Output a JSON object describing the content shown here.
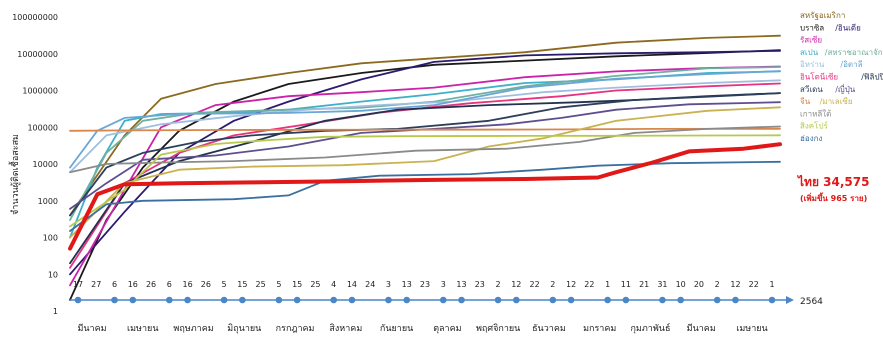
{
  "chart_data": {
    "type": "line",
    "title": "",
    "ylabel": "จำนวนผู้ติดเชื้อสะสม",
    "xlabel": "",
    "yscale": "log",
    "ylim": [
      1,
      100000000
    ],
    "yticks": [
      "1",
      "10",
      "100",
      "1000",
      "10000",
      "100000",
      "1000000",
      "10000000",
      "100000000"
    ],
    "year_label": "2564",
    "day_ticks": [
      "17",
      "27",
      "6",
      "16",
      "26",
      "6",
      "16",
      "26",
      "5",
      "15",
      "25",
      "5",
      "15",
      "25",
      "4",
      "14",
      "24",
      "3",
      "13",
      "23",
      "3",
      "13",
      "23",
      "2",
      "12",
      "22",
      "2",
      "12",
      "22",
      "1",
      "11",
      "21",
      "31",
      "10",
      "20",
      "2",
      "12",
      "22",
      "1"
    ],
    "months": [
      "มีนาคม",
      "เมษายน",
      "พฤษภาคม",
      "มิถุนายน",
      "กรกฎาคม",
      "สิงหาคม",
      "กันยายน",
      "ตุลาคม",
      "พฤศจิกายน",
      "ธันวาคม",
      "มกราคม",
      "กุมภาพันธ์",
      "มีนาคม",
      "เมษายน"
    ],
    "x_start": 0,
    "x_end": 39,
    "grid": false,
    "legend_position": "right",
    "thai_label": "ไทย 34,575",
    "thai_sub": "(เพิ่มขึ้น 965 ราย)",
    "series": [
      {
        "name": "สหรัฐอเมริกา",
        "color": "#8b6a1f",
        "points": [
          [
            0,
            400
          ],
          [
            1.5,
            5000
          ],
          [
            3,
            60000
          ],
          [
            5,
            600000
          ],
          [
            8,
            1500000
          ],
          [
            12,
            3000000
          ],
          [
            16,
            5500000
          ],
          [
            20,
            7500000
          ],
          [
            25,
            11000000
          ],
          [
            30,
            20000000
          ],
          [
            35,
            27000000
          ],
          [
            39,
            31000000
          ]
        ]
      },
      {
        "name": "บราซิล",
        "color": "#1a1a1a",
        "points": [
          [
            0,
            2
          ],
          [
            2,
            300
          ],
          [
            4,
            8000
          ],
          [
            6,
            80000
          ],
          [
            9,
            500000
          ],
          [
            12,
            1500000
          ],
          [
            16,
            3000000
          ],
          [
            20,
            5000000
          ],
          [
            25,
            6500000
          ],
          [
            30,
            8500000
          ],
          [
            35,
            10500000
          ],
          [
            39,
            12500000
          ]
        ]
      },
      {
        "name": "อินเดีย",
        "color": "#2d1a6e",
        "points": [
          [
            0,
            10
          ],
          [
            3,
            500
          ],
          [
            6,
            20000
          ],
          [
            9,
            150000
          ],
          [
            12,
            500000
          ],
          [
            16,
            2000000
          ],
          [
            20,
            6000000
          ],
          [
            25,
            9000000
          ],
          [
            30,
            10300000
          ],
          [
            35,
            11000000
          ],
          [
            39,
            12000000
          ]
        ]
      },
      {
        "name": "รัสเซีย",
        "color": "#cc22aa",
        "points": [
          [
            0,
            5
          ],
          [
            3,
            2000
          ],
          [
            5,
            100000
          ],
          [
            8,
            400000
          ],
          [
            12,
            700000
          ],
          [
            16,
            900000
          ],
          [
            20,
            1200000
          ],
          [
            25,
            2300000
          ],
          [
            30,
            3300000
          ],
          [
            35,
            4100000
          ],
          [
            39,
            4500000
          ]
        ]
      },
      {
        "name": "สเปน",
        "color": "#40b0c8",
        "points": [
          [
            0,
            100
          ],
          [
            1.5,
            8000
          ],
          [
            3,
            150000
          ],
          [
            5,
            230000
          ],
          [
            9,
            250000
          ],
          [
            12,
            300000
          ],
          [
            16,
            500000
          ],
          [
            20,
            800000
          ],
          [
            25,
            1600000
          ],
          [
            30,
            2000000
          ],
          [
            35,
            3000000
          ],
          [
            39,
            3300000
          ]
        ]
      },
      {
        "name": "สหราชอาณาจักร",
        "color": "#6fb0a0",
        "points": [
          [
            0,
            300
          ],
          [
            2,
            20000
          ],
          [
            4,
            150000
          ],
          [
            7,
            250000
          ],
          [
            12,
            300000
          ],
          [
            16,
            340000
          ],
          [
            20,
            500000
          ],
          [
            25,
            1300000
          ],
          [
            30,
            2500000
          ],
          [
            35,
            4000000
          ],
          [
            39,
            4350000
          ]
        ]
      },
      {
        "name": "อิหร่าน",
        "color": "#a0bfe0",
        "points": [
          [
            0,
            6000
          ],
          [
            2,
            60000
          ],
          [
            5,
            120000
          ],
          [
            9,
            200000
          ],
          [
            13,
            300000
          ],
          [
            17,
            400000
          ],
          [
            21,
            500000
          ],
          [
            26,
            900000
          ],
          [
            30,
            1200000
          ],
          [
            35,
            1600000
          ],
          [
            39,
            1900000
          ]
        ]
      },
      {
        "name": "อิตาลี",
        "color": "#6aa6d6",
        "points": [
          [
            0,
            8000
          ],
          [
            1.5,
            80000
          ],
          [
            3,
            180000
          ],
          [
            6,
            230000
          ],
          [
            12,
            245000
          ],
          [
            16,
            280000
          ],
          [
            20,
            400000
          ],
          [
            25,
            1200000
          ],
          [
            30,
            2100000
          ],
          [
            35,
            2800000
          ],
          [
            39,
            3400000
          ]
        ]
      },
      {
        "name": "อินโดนีเซีย",
        "color": "#e8337f",
        "points": [
          [
            0,
            15
          ],
          [
            3,
            3000
          ],
          [
            6,
            20000
          ],
          [
            9,
            60000
          ],
          [
            13,
            120000
          ],
          [
            17,
            250000
          ],
          [
            22,
            450000
          ],
          [
            27,
            700000
          ],
          [
            30,
            1000000
          ],
          [
            35,
            1300000
          ],
          [
            39,
            1550000
          ]
        ]
      },
      {
        "name": "ฟิลิปปินส์",
        "color": "#22324e",
        "points": [
          [
            0,
            20
          ],
          [
            3,
            3000
          ],
          [
            6,
            12000
          ],
          [
            10,
            40000
          ],
          [
            14,
            150000
          ],
          [
            18,
            300000
          ],
          [
            23,
            400000
          ],
          [
            28,
            480000
          ],
          [
            31,
            550000
          ],
          [
            35,
            700000
          ],
          [
            39,
            850000
          ]
        ]
      },
      {
        "name": "สวีเดน",
        "color": "#2c3e5c",
        "points": [
          [
            0,
            400
          ],
          [
            2,
            8000
          ],
          [
            4,
            20000
          ],
          [
            7,
            40000
          ],
          [
            10,
            60000
          ],
          [
            14,
            80000
          ],
          [
            18,
            90000
          ],
          [
            23,
            150000
          ],
          [
            27,
            350000
          ],
          [
            31,
            550000
          ],
          [
            35,
            680000
          ],
          [
            39,
            850000
          ]
        ]
      },
      {
        "name": "ญี่ปุ่น",
        "color": "#5d4f8f",
        "points": [
          [
            0,
            600
          ],
          [
            2,
            3000
          ],
          [
            4,
            13000
          ],
          [
            8,
            17000
          ],
          [
            12,
            30000
          ],
          [
            16,
            70000
          ],
          [
            20,
            90000
          ],
          [
            24,
            120000
          ],
          [
            27,
            180000
          ],
          [
            30,
            300000
          ],
          [
            34,
            420000
          ],
          [
            39,
            480000
          ]
        ]
      },
      {
        "name": "จีน",
        "color": "#d8864a",
        "points": [
          [
            0,
            80000
          ],
          [
            3,
            82000
          ],
          [
            8,
            84000
          ],
          [
            14,
            85000
          ],
          [
            20,
            86000
          ],
          [
            26,
            87000
          ],
          [
            32,
            90000
          ],
          [
            39,
            90500
          ]
        ]
      },
      {
        "name": "มาเลเซีย",
        "color": "#c9b24f",
        "points": [
          [
            0,
            100
          ],
          [
            3,
            3000
          ],
          [
            6,
            7000
          ],
          [
            10,
            8500
          ],
          [
            15,
            9300
          ],
          [
            20,
            12000
          ],
          [
            23,
            30000
          ],
          [
            26,
            50000
          ],
          [
            30,
            150000
          ],
          [
            35,
            280000
          ],
          [
            39,
            350000
          ]
        ]
      },
      {
        "name": "เกาหลีใต้",
        "color": "#8a8a8a",
        "points": [
          [
            0,
            6000
          ],
          [
            2,
            10000
          ],
          [
            5,
            11000
          ],
          [
            9,
            12000
          ],
          [
            14,
            15000
          ],
          [
            19,
            23000
          ],
          [
            24,
            26000
          ],
          [
            28,
            40000
          ],
          [
            31,
            70000
          ],
          [
            35,
            90000
          ],
          [
            39,
            105000
          ]
        ]
      },
      {
        "name": "สิงคโปร์",
        "color": "#b8c84a",
        "points": [
          [
            0,
            200
          ],
          [
            3,
            2000
          ],
          [
            5,
            18000
          ],
          [
            8,
            35000
          ],
          [
            11,
            45000
          ],
          [
            14,
            55000
          ],
          [
            18,
            57000
          ],
          [
            25,
            58000
          ],
          [
            30,
            58500
          ],
          [
            35,
            59800
          ],
          [
            39,
            60500
          ]
        ]
      },
      {
        "name": "ฮ่องกง",
        "color": "#3a6fa0",
        "points": [
          [
            0,
            150
          ],
          [
            2,
            800
          ],
          [
            4,
            1000
          ],
          [
            9,
            1100
          ],
          [
            12,
            1400
          ],
          [
            14,
            3500
          ],
          [
            17,
            4800
          ],
          [
            22,
            5300
          ],
          [
            26,
            7000
          ],
          [
            29,
            9000
          ],
          [
            33,
            10500
          ],
          [
            39,
            11500
          ]
        ]
      },
      {
        "name": "ไทย",
        "color": "#e11818",
        "width": 4,
        "points": [
          [
            0,
            50
          ],
          [
            1.5,
            1500
          ],
          [
            3,
            2800
          ],
          [
            6,
            3000
          ],
          [
            10,
            3150
          ],
          [
            15,
            3400
          ],
          [
            20,
            3700
          ],
          [
            25,
            3900
          ],
          [
            29,
            4300
          ],
          [
            30,
            6000
          ],
          [
            32,
            11000
          ],
          [
            34,
            22000
          ],
          [
            37,
            26000
          ],
          [
            39,
            34575
          ]
        ]
      }
    ]
  }
}
